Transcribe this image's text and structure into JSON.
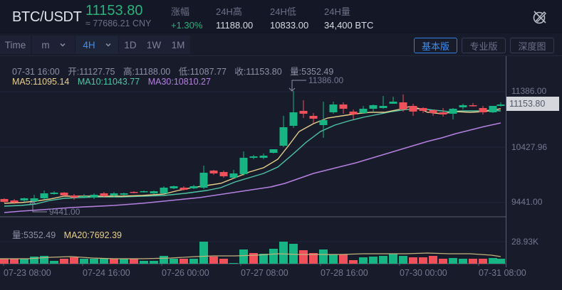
{
  "header": {
    "pair": "BTC/USDT",
    "last_price": "11153.80",
    "cny_price": "≈ 77686.21 CNY",
    "stats": [
      {
        "label": "涨幅",
        "value": "+1.30%",
        "up": true
      },
      {
        "label": "24H高",
        "value": "11188.00"
      },
      {
        "label": "24H低",
        "value": "10833.00"
      },
      {
        "label": "24H量",
        "value": "34,400 BTC"
      }
    ],
    "icon": "brush-off-icon"
  },
  "toolbar": {
    "time_label": "Time",
    "minute_select": "m",
    "hour_select": "4H",
    "intervals": [
      "1D",
      "1W",
      "1M"
    ],
    "views": [
      {
        "label": "基本版",
        "active": true
      },
      {
        "label": "专业版",
        "active": false
      },
      {
        "label": "深度图",
        "active": false
      }
    ]
  },
  "ohlc": {
    "time": "07-31 16:00",
    "open": "开:11127.75",
    "high": "高:11188.00",
    "low": "低:11087.77",
    "close": "收:11153.80",
    "volume": "量:5352.49"
  },
  "ma": {
    "ma5": "MA5:11095.14",
    "ma10": "MA10:11043.77",
    "ma30": "MA30:10810.27"
  },
  "volume_info": {
    "volume": "量:5352.49",
    "ma20": "MA20:7692.39"
  },
  "price_axis": {
    "labels": [
      "11386.00",
      "10427.96",
      "9441.00"
    ],
    "current": "11153.80",
    "volume_label": "28.93K"
  },
  "annotations": {
    "high": "11386.00",
    "low": "9441.00"
  },
  "time_axis": [
    "07-23 08:00",
    "07-24 16:00",
    "07-26 00:00",
    "07-27 08:00",
    "07-28 16:00",
    "07-30 00:00",
    "07-31 08:00"
  ],
  "colors": {
    "up": "#17b584",
    "down": "#f0505a",
    "ma5": "#e8cf8a",
    "ma10": "#4fc6a6",
    "ma30": "#b480e0",
    "accent": "#3a8ef0",
    "background": "#181b2a"
  },
  "chart_data": {
    "type": "candlestick",
    "title": "BTC/USDT 4H",
    "x": [
      "07-23 04:00",
      "07-23 08:00",
      "07-23 12:00",
      "07-23 16:00",
      "07-23 20:00",
      "07-24 00:00",
      "07-24 04:00",
      "07-24 08:00",
      "07-24 12:00",
      "07-24 16:00",
      "07-24 20:00",
      "07-25 00:00",
      "07-25 04:00",
      "07-25 08:00",
      "07-25 12:00",
      "07-25 16:00",
      "07-25 20:00",
      "07-26 00:00",
      "07-26 04:00",
      "07-26 08:00",
      "07-26 12:00",
      "07-26 16:00",
      "07-26 20:00",
      "07-27 00:00",
      "07-27 04:00",
      "07-27 08:00",
      "07-27 12:00",
      "07-27 16:00",
      "07-27 20:00",
      "07-28 00:00",
      "07-28 04:00",
      "07-28 08:00",
      "07-28 12:00",
      "07-28 16:00",
      "07-28 20:00",
      "07-29 00:00",
      "07-29 04:00",
      "07-29 08:00",
      "07-29 12:00",
      "07-29 16:00",
      "07-29 20:00",
      "07-30 00:00",
      "07-30 04:00",
      "07-30 08:00",
      "07-30 12:00",
      "07-30 16:00",
      "07-30 20:00",
      "07-31 00:00",
      "07-31 04:00",
      "07-31 16:00"
    ],
    "ylim": [
      9441,
      11386
    ],
    "ylabel": "USDT",
    "volume_max_label": "28.93K"
  }
}
